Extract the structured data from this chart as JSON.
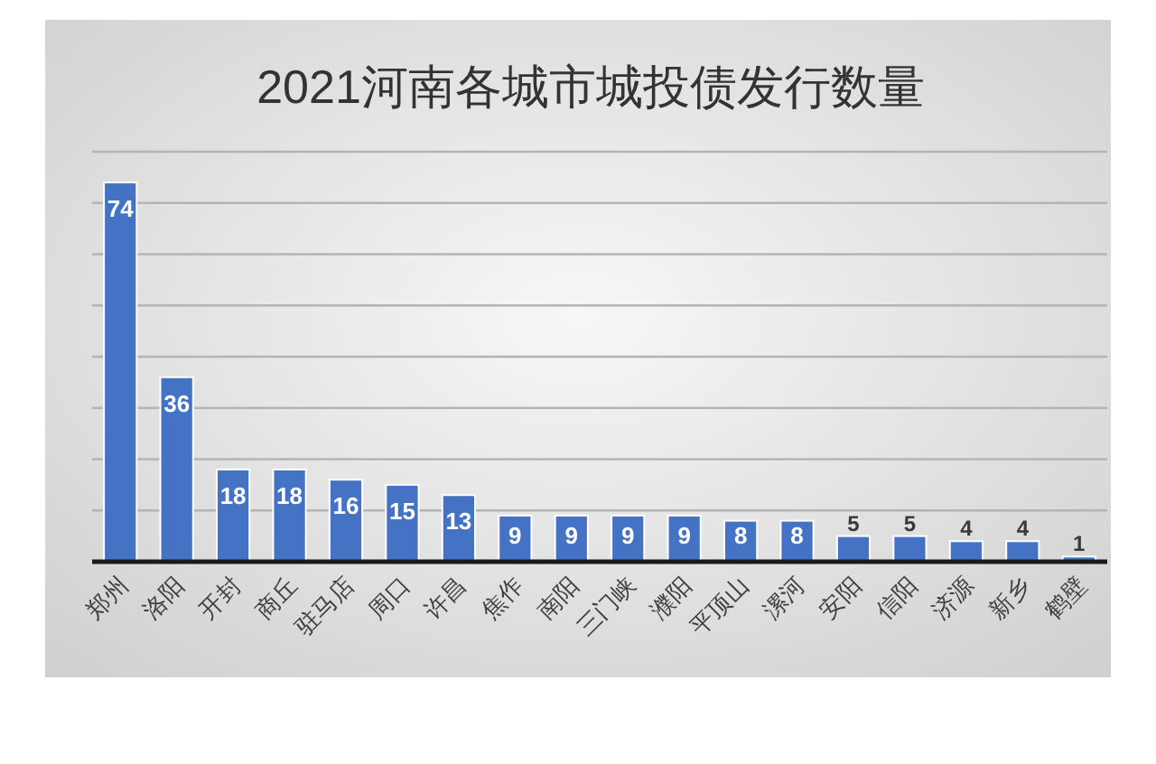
{
  "chart_data": {
    "type": "bar",
    "title": "2021河南各城市城投债发行数量",
    "categories": [
      "郑州",
      "洛阳",
      "开封",
      "商丘",
      "驻马店",
      "周口",
      "许昌",
      "焦作",
      "南阳",
      "三门峡",
      "濮阳",
      "平顶山",
      "漯河",
      "安阳",
      "信阳",
      "济源",
      "新乡",
      "鹤壁"
    ],
    "values": [
      74,
      36,
      18,
      18,
      16,
      15,
      13,
      9,
      9,
      9,
      9,
      8,
      8,
      5,
      5,
      4,
      4,
      1
    ],
    "color": "#4472c4",
    "ylim": [
      0,
      80
    ],
    "yticks": [
      {
        "value": 10,
        "label": null
      },
      {
        "value": 20,
        "label": null
      },
      {
        "value": 30,
        "label": null
      },
      {
        "value": 40,
        "label": null
      },
      {
        "value": 50,
        "label": null
      },
      {
        "value": 60,
        "label": null
      },
      {
        "value": 70,
        "label": null
      },
      {
        "value": 80,
        "label": null
      }
    ],
    "grid": "y",
    "data_labels": true,
    "tick_labels": "x"
  }
}
